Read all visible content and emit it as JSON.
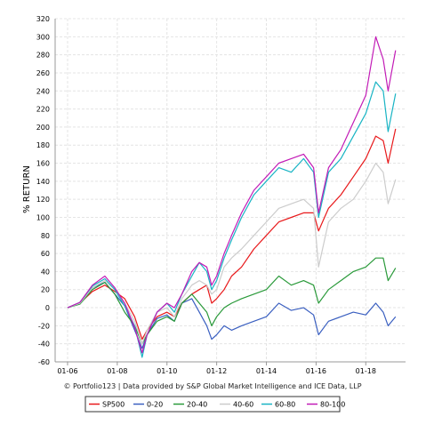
{
  "chart_data": {
    "type": "line",
    "ylabel": "% RETURN",
    "xlabel": "",
    "ylim": [
      -60,
      320
    ],
    "yticks": [
      -60,
      -40,
      -20,
      0,
      20,
      40,
      60,
      80,
      100,
      120,
      140,
      160,
      180,
      200,
      220,
      240,
      260,
      280,
      300,
      320
    ],
    "xlim": [
      2005.5,
      2019.6
    ],
    "xticks": [
      {
        "x": 2006,
        "label": "01-06"
      },
      {
        "x": 2008,
        "label": "01-08"
      },
      {
        "x": 2010,
        "label": "01-10"
      },
      {
        "x": 2012,
        "label": "01-12"
      },
      {
        "x": 2014,
        "label": "01-14"
      },
      {
        "x": 2016,
        "label": "01-16"
      },
      {
        "x": 2018,
        "label": "01-18"
      }
    ],
    "grid": true,
    "legend_position": "bottom",
    "credit": "© Portfolio123 | Data provided by S&P Global Market Intelligence and ICE Data, LLP",
    "x": [
      2006.0,
      2006.5,
      2007.0,
      2007.5,
      2007.9,
      2008.3,
      2008.7,
      2009.0,
      2009.2,
      2009.6,
      2010.0,
      2010.3,
      2010.6,
      2011.0,
      2011.3,
      2011.6,
      2011.8,
      2012.0,
      2012.3,
      2012.6,
      2013.0,
      2013.5,
      2014.0,
      2014.5,
      2015.0,
      2015.5,
      2015.9,
      2016.1,
      2016.5,
      2017.0,
      2017.5,
      2018.0,
      2018.4,
      2018.7,
      2018.9,
      2019.2
    ],
    "series": [
      {
        "name": "SP500",
        "color": "#e8191b",
        "values": [
          0,
          5,
          18,
          25,
          18,
          10,
          -10,
          -35,
          -25,
          -10,
          -5,
          -10,
          5,
          15,
          20,
          25,
          5,
          10,
          20,
          35,
          45,
          65,
          80,
          95,
          100,
          105,
          105,
          85,
          110,
          125,
          145,
          165,
          190,
          185,
          160,
          198
        ]
      },
      {
        "name": "0-20",
        "color": "#3a5fc0",
        "values": [
          0,
          5,
          22,
          28,
          15,
          2,
          -25,
          -45,
          -30,
          -12,
          -8,
          -15,
          5,
          10,
          -5,
          -20,
          -35,
          -30,
          -20,
          -25,
          -20,
          -15,
          -10,
          5,
          -3,
          0,
          -8,
          -30,
          -15,
          -10,
          -5,
          -8,
          5,
          -5,
          -20,
          -10
        ]
      },
      {
        "name": "20-40",
        "color": "#2a9a3a",
        "values": [
          0,
          4,
          20,
          28,
          15,
          -5,
          -20,
          -40,
          -30,
          -15,
          -10,
          -15,
          5,
          15,
          5,
          -5,
          -20,
          -10,
          0,
          5,
          10,
          15,
          20,
          35,
          25,
          30,
          25,
          5,
          20,
          30,
          40,
          45,
          55,
          55,
          30,
          44
        ]
      },
      {
        "name": "40-60",
        "color": "#cccccc",
        "values": [
          0,
          5,
          22,
          30,
          20,
          5,
          -15,
          -40,
          -25,
          -5,
          0,
          -10,
          10,
          25,
          30,
          25,
          15,
          20,
          45,
          55,
          65,
          80,
          95,
          110,
          115,
          120,
          110,
          45,
          95,
          110,
          120,
          140,
          160,
          150,
          115,
          142
        ]
      },
      {
        "name": "60-80",
        "color": "#18b4c4",
        "values": [
          0,
          6,
          24,
          32,
          20,
          2,
          -20,
          -55,
          -30,
          -5,
          5,
          -5,
          15,
          35,
          50,
          40,
          20,
          30,
          55,
          75,
          100,
          125,
          140,
          155,
          150,
          165,
          150,
          100,
          150,
          165,
          190,
          215,
          250,
          240,
          195,
          237
        ]
      },
      {
        "name": "80-100",
        "color": "#c21bb6",
        "values": [
          0,
          6,
          25,
          35,
          22,
          5,
          -22,
          -50,
          -30,
          -5,
          5,
          0,
          15,
          40,
          50,
          45,
          25,
          35,
          60,
          80,
          105,
          130,
          145,
          160,
          165,
          170,
          155,
          105,
          155,
          175,
          205,
          235,
          300,
          275,
          240,
          285
        ]
      }
    ]
  }
}
